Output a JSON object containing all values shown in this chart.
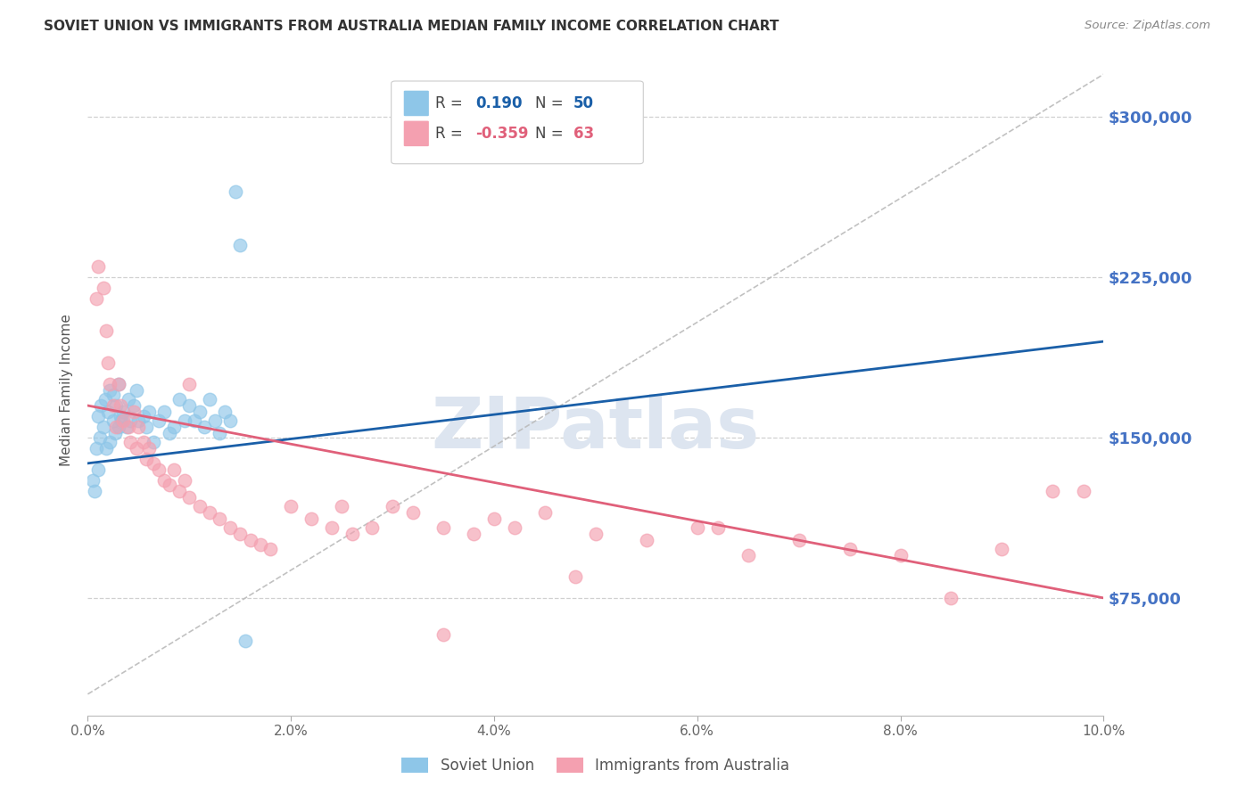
{
  "title": "SOVIET UNION VS IMMIGRANTS FROM AUSTRALIA MEDIAN FAMILY INCOME CORRELATION CHART",
  "source": "Source: ZipAtlas.com",
  "ylabel": "Median Family Income",
  "xmin": 0.0,
  "xmax": 10.0,
  "ymin": 20000,
  "ymax": 325000,
  "yticks": [
    75000,
    150000,
    225000,
    300000
  ],
  "ytick_labels": [
    "$75,000",
    "$150,000",
    "$225,000",
    "$300,000"
  ],
  "xticks": [
    0.0,
    2.0,
    4.0,
    6.0,
    8.0,
    10.0
  ],
  "xtick_labels": [
    "0.0%",
    "2.0%",
    "4.0%",
    "6.0%",
    "8.0%",
    "10.0%"
  ],
  "soviet_color": "#8ec6e8",
  "australia_color": "#f4a0b0",
  "soviet_R": "0.190",
  "soviet_N": "50",
  "australia_R": "-0.359",
  "australia_N": "63",
  "soviet_scatter_x": [
    0.05,
    0.07,
    0.08,
    0.1,
    0.1,
    0.12,
    0.13,
    0.15,
    0.17,
    0.18,
    0.2,
    0.22,
    0.22,
    0.25,
    0.25,
    0.27,
    0.28,
    0.3,
    0.3,
    0.32,
    0.33,
    0.35,
    0.38,
    0.4,
    0.42,
    0.45,
    0.48,
    0.5,
    0.55,
    0.58,
    0.6,
    0.65,
    0.7,
    0.75,
    0.8,
    0.85,
    0.9,
    0.95,
    1.0,
    1.05,
    1.1,
    1.15,
    1.2,
    1.25,
    1.3,
    1.35,
    1.4,
    1.45,
    1.5,
    1.55
  ],
  "soviet_scatter_y": [
    130000,
    125000,
    145000,
    135000,
    160000,
    150000,
    165000,
    155000,
    168000,
    145000,
    162000,
    172000,
    148000,
    158000,
    170000,
    152000,
    165000,
    155000,
    175000,
    160000,
    158000,
    162000,
    155000,
    168000,
    158000,
    165000,
    172000,
    158000,
    160000,
    155000,
    162000,
    148000,
    158000,
    162000,
    152000,
    155000,
    168000,
    158000,
    165000,
    158000,
    162000,
    155000,
    168000,
    158000,
    152000,
    162000,
    158000,
    265000,
    240000,
    55000
  ],
  "australia_scatter_x": [
    0.08,
    0.1,
    0.15,
    0.18,
    0.2,
    0.22,
    0.25,
    0.28,
    0.3,
    0.32,
    0.35,
    0.4,
    0.42,
    0.45,
    0.48,
    0.5,
    0.55,
    0.58,
    0.6,
    0.65,
    0.7,
    0.75,
    0.8,
    0.85,
    0.9,
    0.95,
    1.0,
    1.1,
    1.2,
    1.3,
    1.4,
    1.5,
    1.6,
    1.7,
    1.8,
    2.0,
    2.2,
    2.4,
    2.6,
    2.8,
    3.0,
    3.2,
    3.5,
    3.8,
    4.0,
    4.2,
    4.5,
    5.0,
    5.5,
    6.0,
    6.5,
    7.0,
    7.5,
    8.0,
    8.5,
    9.0,
    9.5,
    1.0,
    2.5,
    3.5,
    4.8,
    6.2,
    9.8
  ],
  "australia_scatter_y": [
    215000,
    230000,
    220000,
    200000,
    185000,
    175000,
    165000,
    155000,
    175000,
    165000,
    158000,
    155000,
    148000,
    162000,
    145000,
    155000,
    148000,
    140000,
    145000,
    138000,
    135000,
    130000,
    128000,
    135000,
    125000,
    130000,
    122000,
    118000,
    115000,
    112000,
    108000,
    105000,
    102000,
    100000,
    98000,
    118000,
    112000,
    108000,
    105000,
    108000,
    118000,
    115000,
    108000,
    105000,
    112000,
    108000,
    115000,
    105000,
    102000,
    108000,
    95000,
    102000,
    98000,
    95000,
    75000,
    98000,
    125000,
    175000,
    118000,
    58000,
    85000,
    108000,
    125000
  ],
  "background_color": "#ffffff",
  "grid_color": "#d0d0d0",
  "title_color": "#333333",
  "axis_label_color": "#555555",
  "tick_label_color_y": "#4472c4",
  "tick_label_color_x": "#666666",
  "watermark_text": "ZIPatlas",
  "watermark_color": "#dde5f0",
  "soviet_line_color": "#1a5fa8",
  "australia_line_color": "#e0607a",
  "diagonal_color": "#bbbbbb",
  "soviet_line_x": [
    0.0,
    10.0
  ],
  "soviet_line_y": [
    138000,
    195000
  ],
  "australia_line_x": [
    0.0,
    10.0
  ],
  "australia_line_y": [
    165000,
    75000
  ]
}
